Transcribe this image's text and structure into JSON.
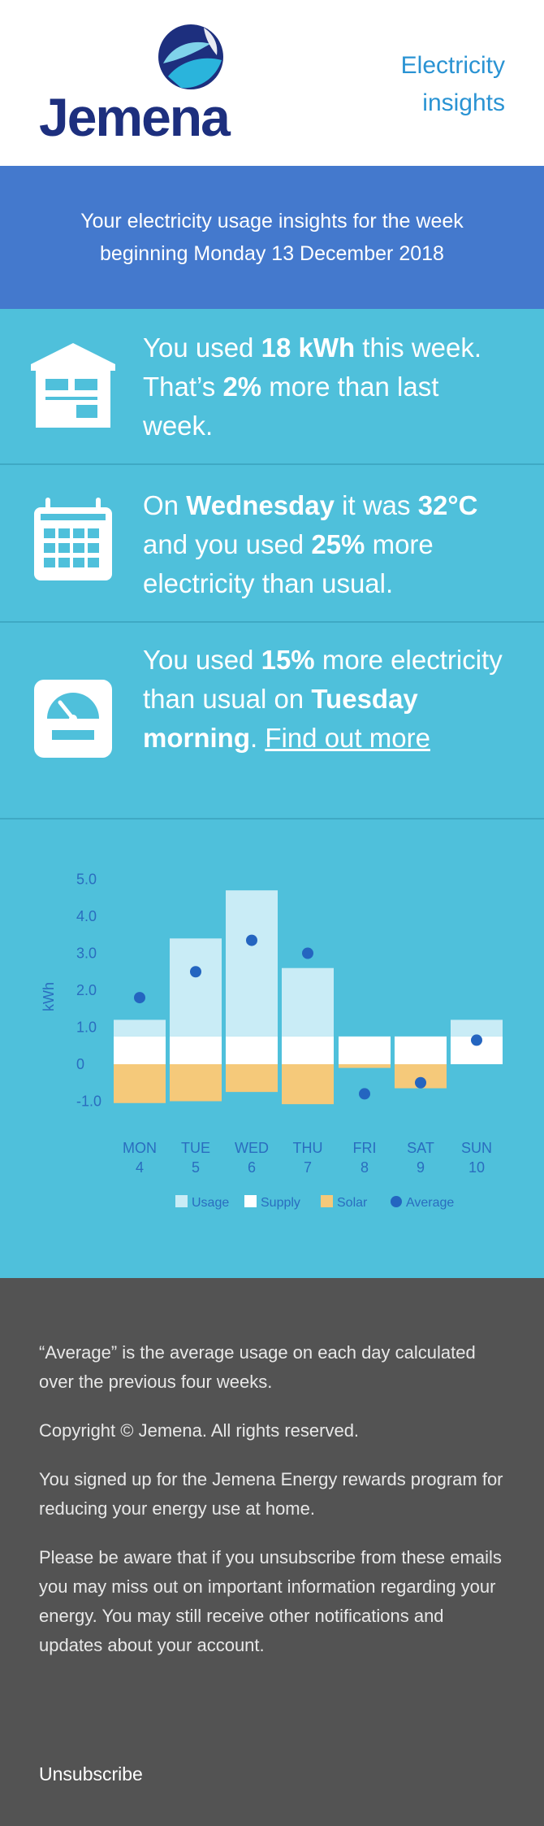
{
  "brand": {
    "name": "Jemena",
    "header_title_line1": "Electricity",
    "header_title_line2": "insights",
    "colors": {
      "navy": "#1d2f7e",
      "sky": "#2a93d3",
      "banner": "#4479cd",
      "panel": "#4fc0db",
      "footer": "#535353"
    }
  },
  "intro": {
    "line1": "Your electricity usage insights for the week",
    "line2": "beginning Monday 13 December 2018"
  },
  "insights": [
    {
      "icon": "house-icon",
      "p1": "You used ",
      "b1": "18 kWh",
      "p2": " this week. That’s ",
      "b2": "2%",
      "p3": " more than last week."
    },
    {
      "icon": "calendar-icon",
      "p1": "On ",
      "b1": "Wednesday",
      "p2": " it was ",
      "b2": "32°C",
      "p3": " and you used ",
      "b3": "25%",
      "p4": " more electricity than usual."
    },
    {
      "icon": "meter-icon",
      "p1": "You used ",
      "b1": "15%",
      "p2": " more electricity than usual on ",
      "b2": "Tuesday morning",
      "p3": ". ",
      "link": "Find out more"
    }
  ],
  "chart_data": {
    "type": "bar",
    "ylabel": "kWh",
    "y_ticks": [
      "5.0",
      "4.0",
      "3.0",
      "2.0",
      "1.0",
      "0",
      "-1.0"
    ],
    "ylim": [
      -1.0,
      5.0
    ],
    "categories": [
      {
        "day": "MON",
        "date": "4"
      },
      {
        "day": "TUE",
        "date": "5"
      },
      {
        "day": "WED",
        "date": "6"
      },
      {
        "day": "THU",
        "date": "7"
      },
      {
        "day": "FRI",
        "date": "8"
      },
      {
        "day": "SAT",
        "date": "9"
      },
      {
        "day": "SUN",
        "date": "10"
      }
    ],
    "series": [
      {
        "name": "Usage",
        "color": "#c9ecf6",
        "values": [
          1.2,
          3.4,
          4.7,
          2.6,
          0.0,
          0.0,
          1.2
        ]
      },
      {
        "name": "Supply",
        "color": "#ffffff",
        "values": [
          0.75,
          0.75,
          0.75,
          0.75,
          0.75,
          0.75,
          0.75
        ]
      },
      {
        "name": "Solar",
        "color": "#f5c97a",
        "values": [
          -1.05,
          -1.0,
          -0.75,
          -1.08,
          -0.1,
          -0.65,
          0.0
        ]
      },
      {
        "name": "Average",
        "color": "#2465c0",
        "values": [
          1.8,
          2.5,
          3.35,
          3.0,
          -0.8,
          -0.5,
          0.65
        ]
      }
    ],
    "legend_position": "bottom"
  },
  "footer": {
    "note": "“Average” is the average usage on each day calculated over the previous four weeks.",
    "copyright": "Copyright © Jemena. All rights reserved.",
    "signup": "You signed up for the Jemena Energy rewards program for reducing your energy use at home.",
    "warning": "Please be aware that if you unsubscribe from these emails you may miss out on important information regarding your energy. You may still receive other notifications and updates about your account.",
    "unsubscribe": "Unsubscribe"
  }
}
